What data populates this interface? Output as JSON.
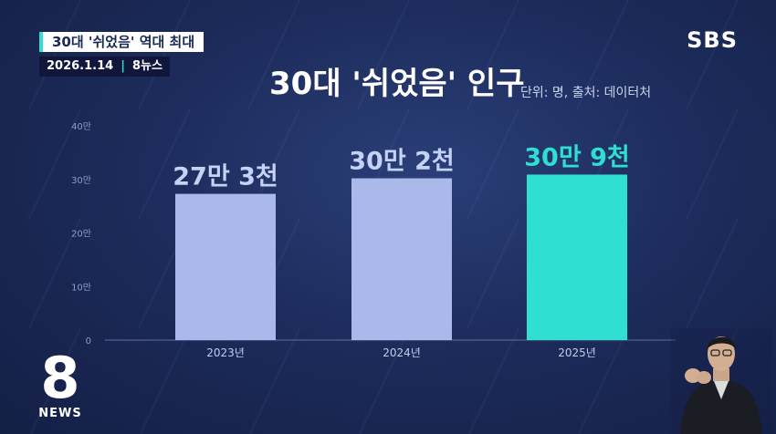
{
  "broadcast": {
    "topic": "30대 '쉬었음' 역대 최대",
    "date": "2026.1.14",
    "program": "8뉴스",
    "network_logo": "SBS",
    "corner_logo_number": "8",
    "corner_logo_word": "NEWS"
  },
  "unit_note": "단위: 명, 출처: 데이터처",
  "colors": {
    "bar_default": "#aab8ea",
    "bar_highlight": "#2fe0d2",
    "label_default": "#c6d2f5",
    "label_highlight": "#2fe0d2"
  },
  "chart_data": {
    "type": "bar",
    "title": "30대 '쉬었음' 인구",
    "categories": [
      "2023년",
      "2024년",
      "2025년"
    ],
    "values": [
      273000,
      302000,
      309000
    ],
    "data_labels": [
      "27만 3천",
      "30만 2천",
      "30만 9천"
    ],
    "highlight_index": 2,
    "yticks": [
      {
        "value": 0,
        "label": "0"
      },
      {
        "value": 100000,
        "label": "10만"
      },
      {
        "value": 200000,
        "label": "20만"
      },
      {
        "value": 300000,
        "label": "30만"
      },
      {
        "value": 400000,
        "label": "40만"
      }
    ],
    "ylim": [
      0,
      400000
    ],
    "grid": false
  }
}
